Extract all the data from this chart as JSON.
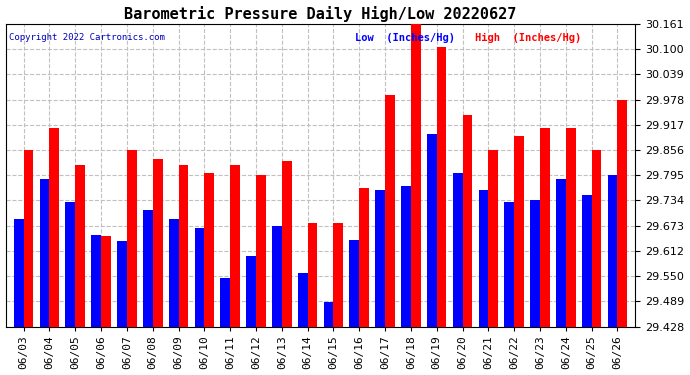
{
  "title": "Barometric Pressure Daily High/Low 20220627",
  "copyright": "Copyright 2022 Cartronics.com",
  "legend_low": "Low  (Inches/Hg)",
  "legend_high": "High  (Inches/Hg)",
  "dates": [
    "06/03",
    "06/04",
    "06/05",
    "06/06",
    "06/07",
    "06/08",
    "06/09",
    "06/10",
    "06/11",
    "06/12",
    "06/13",
    "06/14",
    "06/15",
    "06/16",
    "06/17",
    "06/18",
    "06/19",
    "06/20",
    "06/21",
    "06/22",
    "06/23",
    "06/24",
    "06/25",
    "06/26"
  ],
  "low": [
    29.69,
    29.785,
    29.73,
    29.65,
    29.635,
    29.71,
    29.69,
    29.668,
    29.545,
    29.6,
    29.672,
    29.558,
    29.488,
    29.638,
    29.76,
    29.768,
    29.895,
    29.8,
    29.76,
    29.73,
    29.735,
    29.785,
    29.748,
    29.795
  ],
  "high": [
    29.855,
    29.91,
    29.82,
    29.648,
    29.855,
    29.835,
    29.82,
    29.8,
    29.82,
    29.795,
    29.83,
    29.68,
    29.68,
    29.765,
    29.99,
    30.161,
    30.105,
    29.94,
    29.856,
    29.89,
    29.91,
    29.91,
    29.856,
    29.978
  ],
  "color_low": "#0000ff",
  "color_high": "#ff0000",
  "ylim_min": 29.428,
  "ylim_max": 30.161,
  "yticks": [
    29.428,
    29.489,
    29.55,
    29.612,
    29.673,
    29.734,
    29.795,
    29.856,
    29.917,
    29.978,
    30.039,
    30.1,
    30.161
  ],
  "background_color": "#ffffff",
  "grid_color": "#c0c0c0",
  "title_fontsize": 11,
  "tick_fontsize": 8,
  "bar_width": 0.38
}
